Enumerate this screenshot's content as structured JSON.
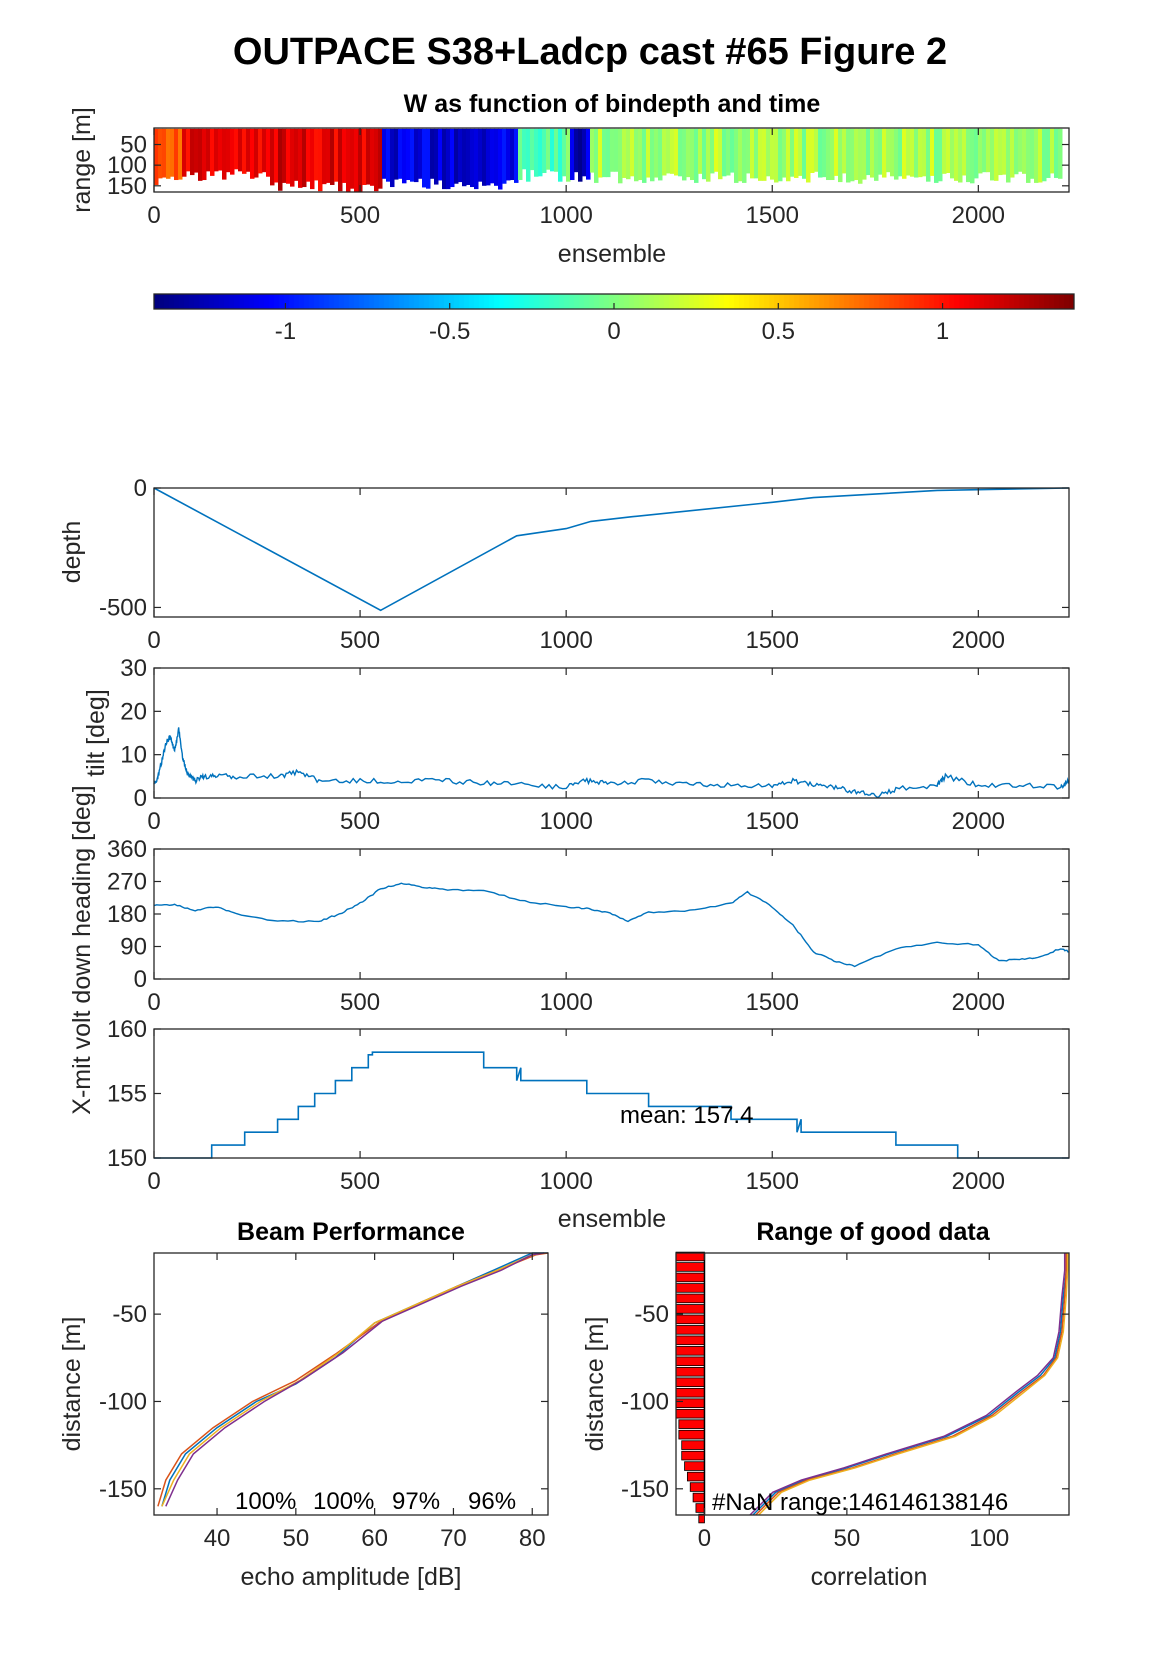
{
  "figure_title": "OUTPACE S38+Ladcp cast #65 Figure 2",
  "colors": {
    "line": "#0072BD",
    "bar_fill": "#FF0000",
    "beam_colors": [
      "#0072BD",
      "#D95319",
      "#EDB120",
      "#7E2F8E"
    ]
  },
  "chart_data": [
    {
      "id": "w_image",
      "type": "heatmap",
      "title": "W as function of bindepth and time",
      "xlabel": "ensemble",
      "ylabel": "range [m]",
      "xlim": [
        0,
        2220
      ],
      "ylim": [
        10,
        165
      ],
      "xticks": [
        "0",
        "500",
        "1000",
        "1500",
        "2000"
      ],
      "yticks": [
        "50",
        "100",
        "150"
      ],
      "colormap": "jet",
      "clim": [
        -1.4,
        1.4
      ],
      "colorbar_ticks": [
        "-1",
        "-0.5",
        "0",
        "0.5",
        "1"
      ],
      "column_segments": [
        {
          "x": [
            0,
            60
          ],
          "w": 0.85,
          "bottom": 140
        },
        {
          "x": [
            60,
            280
          ],
          "w": 1.1,
          "bottom": 125
        },
        {
          "x": [
            280,
            550
          ],
          "w": 1.15,
          "bottom": 150
        },
        {
          "x": [
            550,
            880
          ],
          "w": -1.15,
          "bottom": 145
        },
        {
          "x": [
            880,
            1000
          ],
          "w": -0.1,
          "bottom": 125
        },
        {
          "x": [
            1000,
            1050
          ],
          "w": -1.2,
          "bottom": 125
        },
        {
          "x": [
            1050,
            2220
          ],
          "w": 0.1,
          "bottom": 130
        }
      ]
    },
    {
      "id": "depth",
      "type": "line",
      "ylabel": "depth",
      "xlim": [
        0,
        2220
      ],
      "ylim": [
        -540,
        0
      ],
      "xticks": [
        "0",
        "500",
        "1000",
        "1500",
        "2000"
      ],
      "yticks": [
        "0",
        "-500"
      ],
      "x": [
        0,
        550,
        880,
        1000,
        1060,
        1160,
        1500,
        1600,
        1900,
        2220
      ],
      "y": [
        0,
        -512,
        -200,
        -170,
        -140,
        -120,
        -60,
        -40,
        -10,
        0
      ]
    },
    {
      "id": "tilt",
      "type": "line",
      "ylabel": "tilt [deg]",
      "xlim": [
        0,
        2220
      ],
      "ylim": [
        0,
        30
      ],
      "xticks": [
        "0",
        "500",
        "1000",
        "1500",
        "2000"
      ],
      "yticks": [
        "30",
        "20",
        "10",
        "0"
      ],
      "x": [
        0,
        10,
        20,
        30,
        40,
        50,
        60,
        70,
        80,
        90,
        100,
        120,
        150,
        200,
        300,
        350,
        400,
        500,
        600,
        700,
        800,
        900,
        1000,
        1050,
        1100,
        1200,
        1300,
        1400,
        1500,
        1550,
        1600,
        1650,
        1700,
        1750,
        1800,
        1900,
        1920,
        2000,
        2100,
        2200,
        2220
      ],
      "y": [
        3,
        5,
        9,
        13,
        14,
        11,
        16,
        9,
        6,
        5,
        4,
        5,
        5,
        5,
        5,
        6,
        4,
        4,
        4,
        4,
        3.5,
        3,
        2.5,
        4,
        3.5,
        4,
        3,
        3,
        3,
        4,
        3,
        2.5,
        1.5,
        0.5,
        2,
        3,
        5,
        3,
        3,
        2.5,
        4
      ]
    },
    {
      "id": "heading",
      "type": "line",
      "ylabel": "heading [deg]",
      "xlim": [
        0,
        2220
      ],
      "ylim": [
        0,
        360
      ],
      "xticks": [
        "0",
        "500",
        "1000",
        "1500",
        "2000"
      ],
      "yticks": [
        "360",
        "270",
        "180",
        "90",
        "0"
      ],
      "x": [
        0,
        50,
        100,
        150,
        200,
        300,
        400,
        450,
        500,
        550,
        600,
        650,
        700,
        800,
        900,
        1000,
        1050,
        1100,
        1150,
        1200,
        1300,
        1400,
        1440,
        1500,
        1550,
        1600,
        1650,
        1700,
        1800,
        1900,
        2000,
        2050,
        2100,
        2150,
        2200,
        2220
      ],
      "y": [
        205,
        205,
        190,
        200,
        180,
        160,
        160,
        180,
        210,
        250,
        265,
        255,
        248,
        245,
        215,
        200,
        195,
        185,
        160,
        185,
        190,
        210,
        240,
        200,
        150,
        75,
        50,
        35,
        85,
        100,
        95,
        50,
        55,
        60,
        85,
        75
      ]
    },
    {
      "id": "xmit",
      "type": "line",
      "ylabel": "X-mit volt down",
      "xlabel": "ensemble",
      "xlim": [
        0,
        2220
      ],
      "ylim": [
        150,
        160
      ],
      "xticks": [
        "0",
        "500",
        "1000",
        "1500",
        "2000"
      ],
      "yticks": [
        "160",
        "155",
        "150"
      ],
      "annotation": "mean: 157.4",
      "x": [
        0,
        140,
        140,
        220,
        220,
        300,
        300,
        350,
        350,
        390,
        390,
        440,
        440,
        480,
        480,
        520,
        520,
        530,
        530,
        800,
        800,
        880,
        880,
        890,
        890,
        900,
        900,
        1050,
        1050,
        1200,
        1200,
        1220,
        1220,
        1400,
        1400,
        1560,
        1560,
        1570,
        1570,
        1800,
        1800,
        1950,
        1950,
        2220
      ],
      "y": [
        150,
        150,
        151,
        151,
        152,
        152,
        153,
        153,
        154,
        154,
        155,
        155,
        156,
        156,
        157,
        157,
        158,
        158,
        158.2,
        158.2,
        157,
        157,
        156,
        157,
        156,
        156,
        156,
        156,
        155,
        155,
        154,
        154,
        154,
        154,
        153,
        153,
        152,
        153,
        152,
        152,
        151,
        151,
        150,
        150
      ]
    },
    {
      "id": "beam",
      "type": "line",
      "title": "Beam Performance",
      "xlabel": "echo amplitude [dB]",
      "ylabel": "distance [m]",
      "xlim": [
        32,
        82
      ],
      "ylim": [
        -165,
        -15
      ],
      "xticks": [
        "40",
        "50",
        "60",
        "70",
        "80"
      ],
      "yticks": [
        "-50",
        "-100",
        "-150"
      ],
      "annotations": [
        "100%",
        "100%",
        "97%",
        "96%"
      ],
      "series": [
        {
          "x": [
            33,
            34,
            36,
            40,
            45,
            50,
            55,
            60,
            65,
            70,
            75,
            80,
            82
          ],
          "y": [
            -160,
            -145,
            -130,
            -115,
            -100,
            -90,
            -75,
            -55,
            -45,
            -35,
            -25,
            -15,
            -15
          ]
        },
        {
          "x": [
            32.5,
            33.5,
            35.5,
            39.5,
            44.5,
            50,
            55,
            60.5,
            65.5,
            70.5,
            75.5,
            80.5,
            82
          ],
          "y": [
            -160,
            -145,
            -130,
            -115,
            -100,
            -88,
            -73,
            -55,
            -44,
            -34,
            -25,
            -16,
            -15
          ]
        },
        {
          "x": [
            33,
            34.5,
            36.5,
            40.5,
            45.5,
            50.5,
            55.5,
            60,
            65,
            70,
            75,
            79.5,
            81
          ],
          "y": [
            -160,
            -145,
            -130,
            -115,
            -100,
            -88,
            -72,
            -55,
            -45,
            -35,
            -26,
            -17,
            -15
          ]
        },
        {
          "x": [
            33.5,
            35,
            37,
            41,
            46,
            51,
            56,
            61,
            66,
            71,
            76,
            80,
            81.5
          ],
          "y": [
            -160,
            -145,
            -130,
            -115,
            -100,
            -87,
            -72,
            -54,
            -44,
            -34,
            -25,
            -16,
            -15
          ]
        }
      ]
    },
    {
      "id": "range_good",
      "type": "line",
      "title": "Range of good data",
      "xlabel": "correlation",
      "ylabel": "distance [m]",
      "xlim": [
        -10,
        128
      ],
      "ylim": [
        -165,
        -15
      ],
      "xticks": [
        "0",
        "50",
        "100"
      ],
      "yticks": [
        "-50",
        "-100",
        "-150"
      ],
      "annotation": "#NaN range:146146138146",
      "nan_bars": {
        "x0": -10,
        "y_start": -17,
        "y_step": 6,
        "lengths": [
          10,
          10,
          10,
          10,
          10,
          10,
          10,
          10,
          10,
          10,
          10,
          10,
          10,
          10,
          10,
          10,
          9,
          9,
          8,
          8,
          7,
          6,
          5,
          4,
          3,
          2
        ]
      },
      "series": [
        {
          "x": [
            17,
            25,
            35,
            50,
            65,
            85,
            100,
            110,
            118,
            123,
            125,
            126,
            127,
            127
          ],
          "y": [
            -165,
            -152,
            -145,
            -138,
            -130,
            -120,
            -108,
            -95,
            -85,
            -75,
            -60,
            -40,
            -25,
            -15
          ]
        },
        {
          "x": [
            18,
            26,
            36,
            52,
            67,
            87,
            101,
            111,
            119,
            123.5,
            125.5,
            126.5,
            127,
            127
          ],
          "y": [
            -165,
            -152,
            -145,
            -138,
            -130,
            -120,
            -108,
            -95,
            -85,
            -75,
            -60,
            -40,
            -25,
            -15
          ]
        },
        {
          "x": [
            19,
            27,
            37,
            53,
            68,
            88,
            102,
            112,
            119.5,
            124,
            126,
            127,
            127.5,
            127.5
          ],
          "y": [
            -165,
            -152,
            -145,
            -138,
            -130,
            -120,
            -108,
            -95,
            -85,
            -75,
            -60,
            -40,
            -25,
            -15
          ]
        },
        {
          "x": [
            16,
            24,
            34,
            49,
            64,
            84,
            99,
            109,
            117,
            122.5,
            124.5,
            125.5,
            126.5,
            126.5
          ],
          "y": [
            -165,
            -152,
            -145,
            -138,
            -130,
            -120,
            -108,
            -95,
            -85,
            -75,
            -60,
            -40,
            -25,
            -15
          ]
        }
      ]
    }
  ]
}
